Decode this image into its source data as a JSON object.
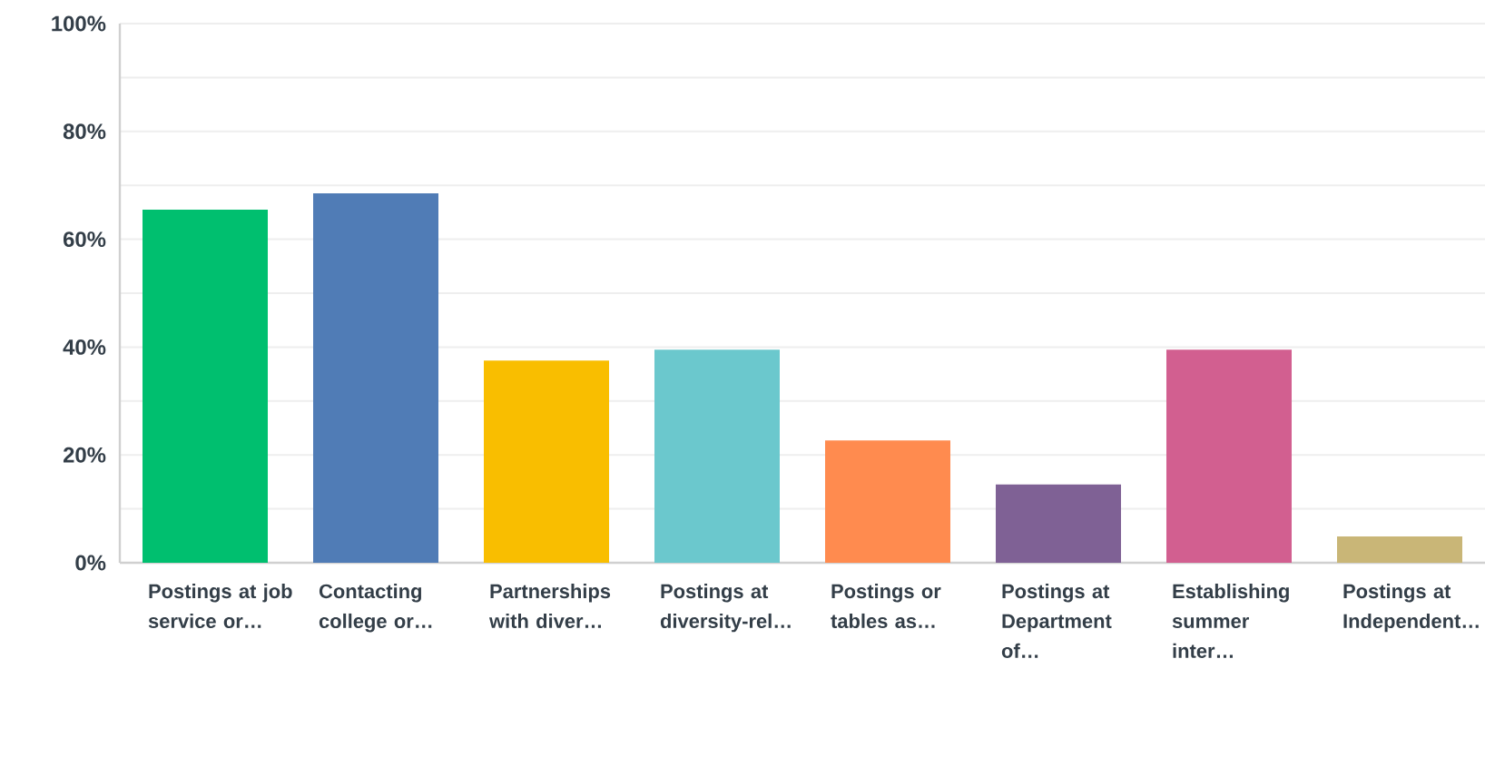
{
  "chart_data": {
    "type": "bar",
    "categories": [
      "Postings at job service or…",
      "Contacting college or…",
      "Partnerships with diver…",
      "Postings at diversity-rel…",
      "Postings or tables as…",
      "Postings at Department of…",
      "Establishing summer inter…",
      "Postings at Independent…"
    ],
    "values": [
      65.5,
      68.5,
      37.5,
      39.5,
      22.7,
      14.5,
      39.5,
      4.9
    ],
    "colors": [
      "#00bf6f",
      "#507cb6",
      "#f9be00",
      "#6bc8cd",
      "#ff8b4f",
      "#7f6195",
      "#d25f90",
      "#c9b677"
    ],
    "ylim": [
      0,
      100
    ],
    "yticks": [
      {
        "value": 0,
        "label": "0%"
      },
      {
        "value": 10,
        "label": null
      },
      {
        "value": 20,
        "label": "20%"
      },
      {
        "value": 30,
        "label": null
      },
      {
        "value": 40,
        "label": "40%"
      },
      {
        "value": 50,
        "label": null
      },
      {
        "value": 60,
        "label": "60%"
      },
      {
        "value": 70,
        "label": null
      },
      {
        "value": 80,
        "label": "80%"
      },
      {
        "value": 90,
        "label": null
      },
      {
        "value": 100,
        "label": "100%"
      }
    ],
    "grid": "y"
  }
}
